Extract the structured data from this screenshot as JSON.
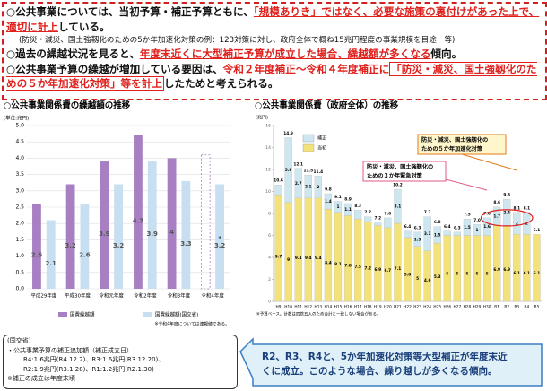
{
  "top_box": {
    "line1": [
      "○公共事業については、当初予算・補正予算ともに、",
      "「規模ありき」ではなく、必要な施策の裏付けがあった上で、適切に計上",
      "している。"
    ],
    "line2": "(防災・減災、国土強靱化のための5か年加速化対策の例：123対策に対し、政府全体で概ね15兆円程度の事業規模を目途　等)",
    "line3": [
      "○過去の繰越状況を見ると、",
      "年度末近くに大型補正予算が成立した場合、繰越額が多くなる",
      "傾向。"
    ],
    "line4": [
      "○公共事業予算の繰越が増加している要因は、",
      "令和２年度補正～令和４年度補正に",
      "「防災・減災、国土強靱化のための５か年加速化対策」等を計上",
      "したためと考えられる。"
    ]
  },
  "chart_data": [
    {
      "type": "bar",
      "title": "○公共事業関係費の繰越額の推移",
      "unit_label": "(単位:兆円)",
      "categories": [
        "平成29年度",
        "平成30年度",
        "令和元年度",
        "令和2年度",
        "令和3年度",
        "令和4年度"
      ],
      "series": [
        {
          "name": "国費繰越額",
          "color": "#a77fc2",
          "values": [
            2.6,
            3.2,
            3.9,
            4.7,
            4.0,
            null
          ]
        },
        {
          "name": "国費繰越額(国交省)",
          "color": "#c7dff0",
          "values": [
            2.1,
            2.6,
            3.2,
            3.9,
            3.3,
            3.2
          ]
        }
      ],
      "ylim": [
        0,
        5
      ],
      "yticks": [
        {
          "value": 0,
          "label": "0.0"
        },
        {
          "value": 0.5,
          "label": "0.5"
        },
        {
          "value": 1,
          "label": "1.0"
        },
        {
          "value": 1.5,
          "label": "1.5"
        },
        {
          "value": 2,
          "label": "2.0"
        },
        {
          "value": 2.5,
          "label": "2.5"
        },
        {
          "value": 3,
          "label": "3.0"
        },
        {
          "value": 3.5,
          "label": "3.5"
        },
        {
          "value": 4,
          "label": "4.0"
        },
        {
          "value": 4.5,
          "label": "4.5"
        },
        {
          "value": 5,
          "label": "5.0"
        }
      ],
      "grid": true,
      "mark": "*",
      "note": "※令和4年度については速報値である。"
    },
    {
      "type": "stacked_bar",
      "title": "○公共事業関係費（政府全体）の推移",
      "unit_label": "(兆円)",
      "categories": [
        "H9",
        "H10",
        "H11",
        "H12",
        "H13",
        "H14",
        "H15",
        "H16",
        "H17",
        "H18",
        "H19",
        "H20",
        "H21",
        "H22",
        "H23",
        "H24",
        "H25",
        "H26",
        "H27",
        "H28",
        "H29",
        "H30",
        "R1",
        "R2",
        "R3",
        "R4",
        "R5"
      ],
      "series": [
        {
          "name": "当初",
          "color": "#f3e27a",
          "values": [
            9.7,
            9.0,
            9.4,
            9.4,
            9.4,
            8.4,
            8.1,
            7.8,
            7.5,
            7.2,
            6.9,
            6.7,
            7.1,
            5.8,
            5.0,
            4.6,
            5.3,
            6.0,
            6.0,
            6.0,
            6.0,
            6.0,
            6.9,
            6.9,
            6.1,
            6.1,
            6.1
          ]
        },
        {
          "name": "補正",
          "color": "#cde6ef",
          "values": [
            0.9,
            5.9,
            2.7,
            2.1,
            2.0,
            1.4,
            1.0,
            1.1,
            0.8,
            0.5,
            0.3,
            0.9,
            3.1,
            0.6,
            1.3,
            3.1,
            1.5,
            0.4,
            0.3,
            1.5,
            1.0,
            1.6,
            1.7,
            2.4,
            2.0,
            2.0,
            null
          ]
        }
      ],
      "totals": [
        "10.6",
        "14.9",
        "12.1",
        "11.5",
        "11.4",
        "9.8",
        "9.1",
        "8.9",
        "8.3",
        "7.7",
        "7.2",
        "7.6",
        "10.2",
        "6.4",
        "6.3",
        "7.7",
        "6.8",
        "6.4",
        "6.3",
        "7.5",
        "7.0",
        "7.6",
        "8.6",
        "9.3",
        "8.1",
        "8.1",
        "6.1"
      ],
      "ylim": [
        0,
        16
      ],
      "yticks": [
        0,
        2,
        4,
        6,
        8,
        10,
        12,
        14,
        16
      ],
      "annotations": [
        [
          "防災・減災、国土強靱化の",
          "ための５か年加速化対策"
        ],
        [
          "防災・減災、国土強靱化の",
          "ための３か年緊急対策"
        ]
      ],
      "note": "※予算ベース。計数は四捨五入のため合計と一致しない場合がある。"
    }
  ],
  "bottom_left": {
    "title": "(国交省)",
    "item": "・公共事業予算の補正追加額（補正成立日）",
    "lines": [
      "R4:1.6兆円(R4.12.2)、R3:1.6兆円(R3.12.20)、",
      "R2:1.9兆円(R3.1.28)、R1:1.2兆円(R2.1.30)"
    ],
    "note": "※補正の成立は年度末頃"
  },
  "bottom_right": [
    "R2、R3、R4と、5か年加速化対策等大型補正が年度末近",
    "くに成立。このような場合、繰り越しが多くなる傾向。"
  ]
}
